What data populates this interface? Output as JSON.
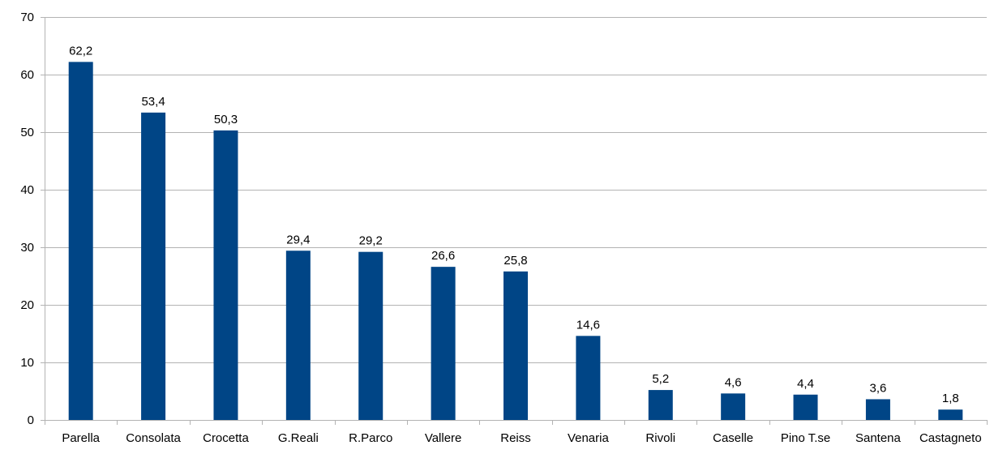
{
  "chart_data": {
    "type": "bar",
    "title": "",
    "xlabel": "",
    "ylabel": "",
    "ylim": [
      0,
      70
    ],
    "yticks": [
      0,
      10,
      20,
      30,
      40,
      50,
      60,
      70
    ],
    "grid": true,
    "legend": "none",
    "categories": [
      "Parella",
      "Consolata",
      "Crocetta",
      "G.Reali",
      "R.Parco",
      "Vallere",
      "Reiss",
      "Venaria",
      "Rivoli",
      "Caselle",
      "Pino T.se",
      "Santena",
      "Castagneto"
    ],
    "values": [
      62.2,
      53.4,
      50.3,
      29.4,
      29.2,
      26.6,
      25.8,
      14.6,
      5.2,
      4.6,
      4.4,
      3.6,
      1.8
    ],
    "data_labels": [
      "62,2",
      "53,4",
      "50,3",
      "29,4",
      "29,2",
      "26,6",
      "25,8",
      "14,6",
      "5,2",
      "4,6",
      "4,4",
      "3,6",
      "1,8"
    ],
    "colors": {
      "bar": "#004586",
      "grid": "#b3b3b3"
    }
  }
}
